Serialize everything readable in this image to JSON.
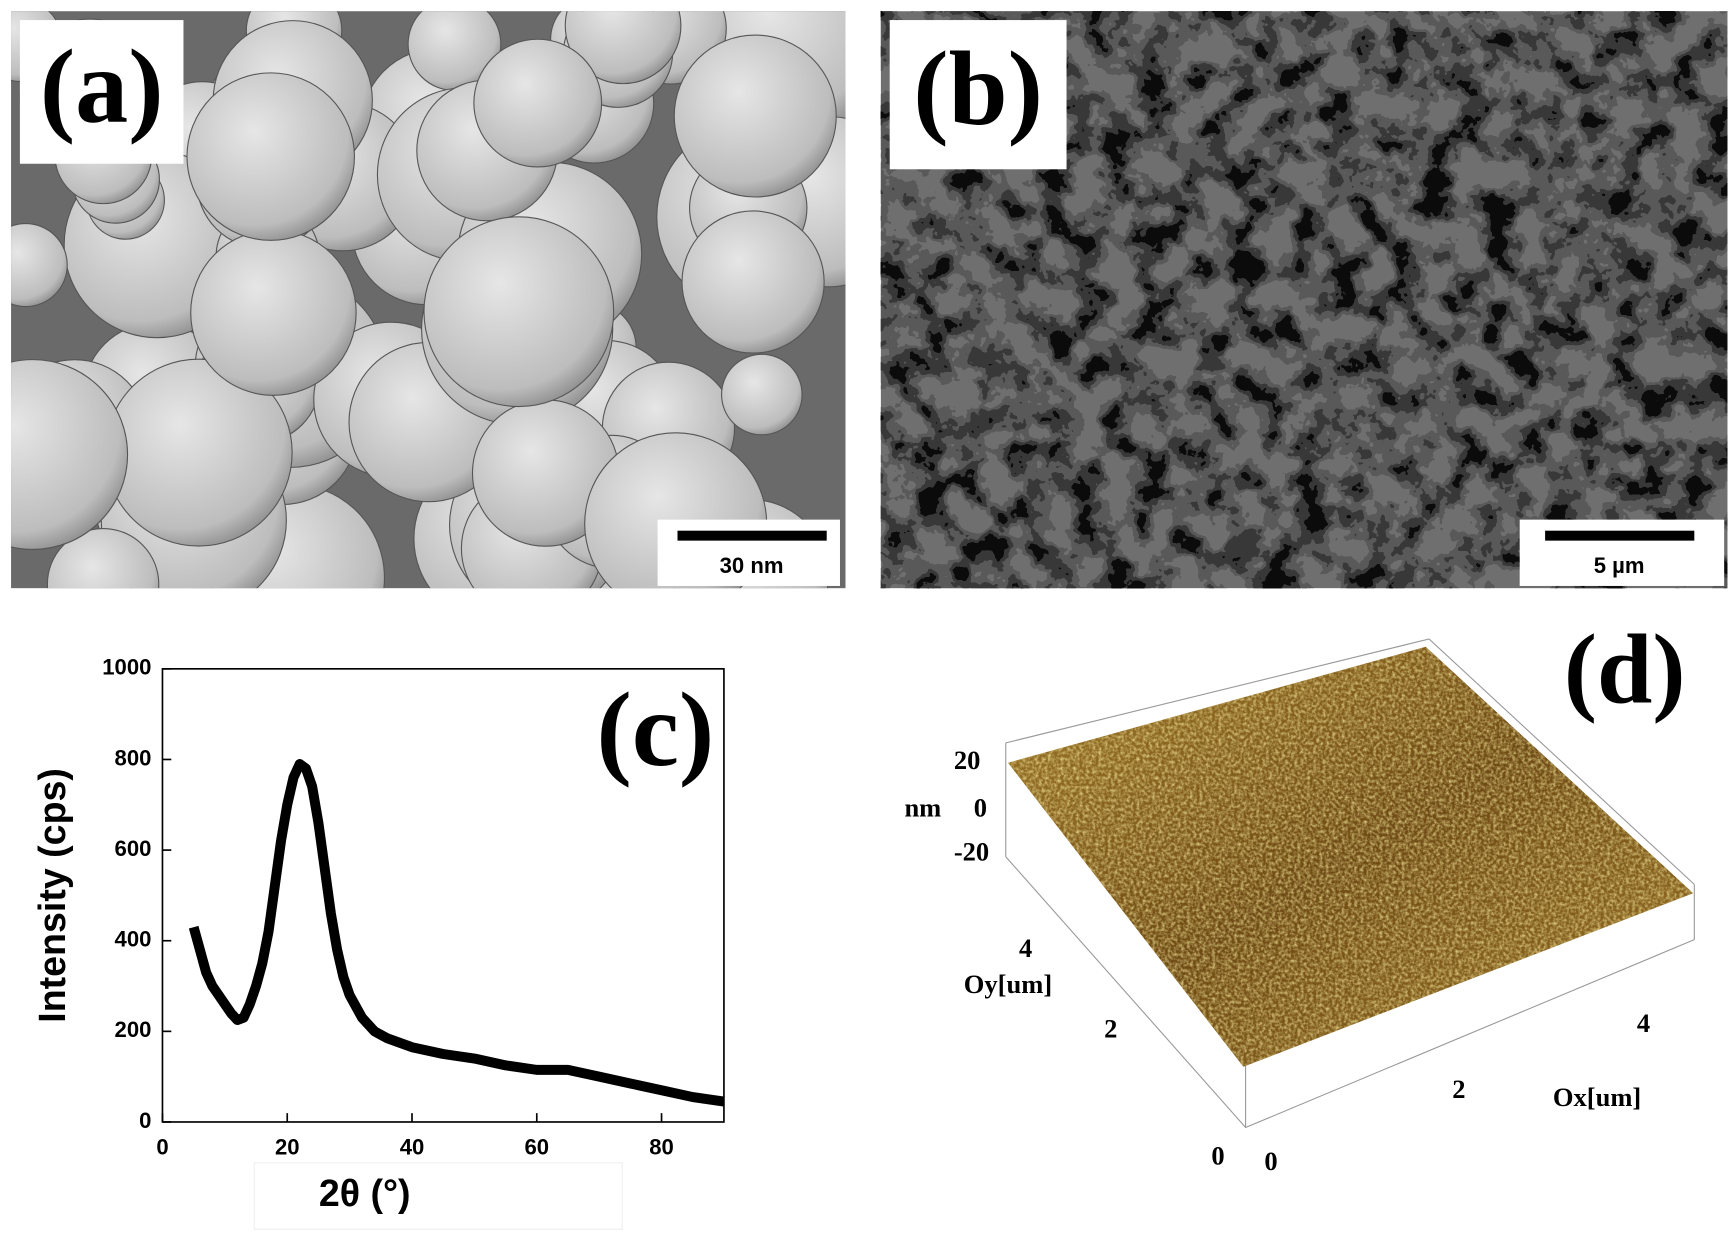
{
  "panels": {
    "a": {
      "label": "(a)",
      "scale_bar": "30 nm"
    },
    "b": {
      "label": "(b)",
      "scale_bar": "5 µm"
    },
    "c": {
      "label": "(c)"
    },
    "d": {
      "label": "(d)",
      "z_unit": "nm",
      "z_ticks": [
        20,
        0,
        -20
      ],
      "y_label": "Oy[um]",
      "y_ticks": [
        4,
        2,
        0
      ],
      "x_label": "Ox[um]",
      "x_ticks": [
        0,
        2,
        4
      ]
    }
  },
  "chart_data": {
    "type": "line",
    "x_label": "2θ (°)",
    "y_label": "Intensity (cps)",
    "color": "#000000",
    "x": [
      5,
      6,
      7,
      8,
      9,
      10,
      11,
      12,
      13,
      14,
      15,
      16,
      17,
      18,
      19,
      20,
      21,
      22,
      23,
      24,
      25,
      26,
      27,
      28,
      29,
      30,
      32,
      34,
      36,
      38,
      40,
      45,
      50,
      55,
      60,
      65,
      70,
      75,
      80,
      85,
      90
    ],
    "values": [
      430,
      380,
      330,
      300,
      280,
      260,
      240,
      225,
      230,
      260,
      300,
      350,
      420,
      520,
      620,
      700,
      760,
      790,
      780,
      740,
      660,
      560,
      460,
      380,
      320,
      280,
      230,
      200,
      185,
      175,
      165,
      150,
      140,
      125,
      115,
      115,
      100,
      85,
      70,
      55,
      45
    ],
    "xlim": [
      0,
      90
    ],
    "xticks": [
      0,
      20,
      40,
      60,
      80
    ],
    "ylim": [
      0,
      1000
    ],
    "yticks": [
      0,
      200,
      400,
      600,
      800,
      1000
    ]
  }
}
